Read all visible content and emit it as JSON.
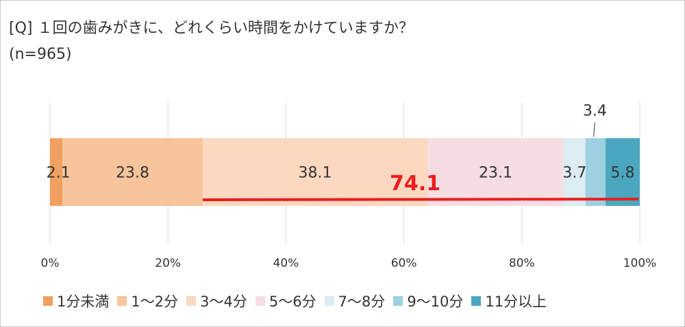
{
  "title": "[Q] １回の歯みがきに、どれくらい時間をかけていますか？",
  "subtitle": "(n=965)",
  "chart_data": {
    "type": "bar",
    "orientation": "horizontal",
    "stacked": "100%",
    "xlim": [
      0,
      100
    ],
    "x_ticks": [
      "0%",
      "20%",
      "40%",
      "60%",
      "80%",
      "100%"
    ],
    "grid": true,
    "legend_position": "bottom",
    "series": [
      {
        "name": "1分未満",
        "value": 2.1,
        "label": "2.1",
        "color": "#f0a060"
      },
      {
        "name": "1～2分",
        "value": 23.8,
        "label": "23.8",
        "color": "#f8c49c"
      },
      {
        "name": "3～4分",
        "value": 38.1,
        "label": "38.1",
        "color": "#fbd8bf"
      },
      {
        "name": "5～6分",
        "value": 23.1,
        "label": "23.1",
        "color": "#f5dde2"
      },
      {
        "name": "7～8分",
        "value": 3.7,
        "label": "3.7",
        "color": "#dcecf3"
      },
      {
        "name": "9～10分",
        "value": 3.4,
        "label": "3.4",
        "color": "#9dd0e1"
      },
      {
        "name": "11分以上",
        "value": 5.8,
        "label": "5.8",
        "color": "#4ba7c0"
      }
    ],
    "annotation": {
      "text": "74.1",
      "color": "#ee1c1c",
      "from_series": 2,
      "to_series": 6
    }
  }
}
